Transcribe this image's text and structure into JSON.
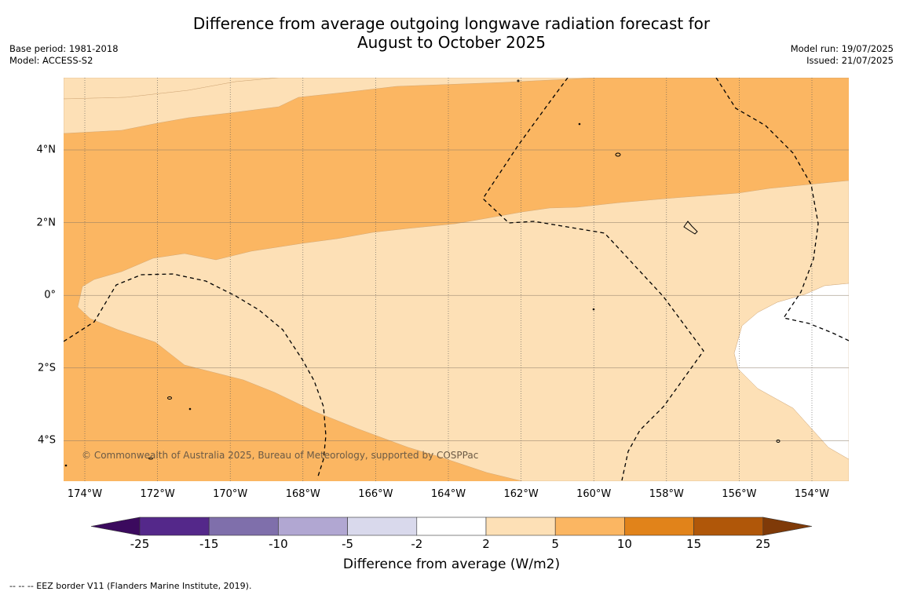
{
  "title_line1": "Difference from average outgoing longwave radiation forecast for",
  "title_line2": "August to October 2025",
  "base_period": "Base period: 1981-2018",
  "model": "Model: ACCESS-S2",
  "model_run": "Model run: 19/07/2025",
  "issued": "Issued: 21/07/2025",
  "copyright": "© Commonwealth of Australia 2025, Bureau of Meteorology, supported by COSPPac",
  "footer_legend": "--  --  -- EEZ border V11 (Flanders Marine Institute, 2019).",
  "lon_ticks": [
    "174°W",
    "172°W",
    "170°W",
    "168°W",
    "166°W",
    "164°W",
    "162°W",
    "160°W",
    "158°W",
    "156°W",
    "154°W"
  ],
  "lat_ticks": [
    "4°N",
    "2°N",
    "0°",
    "2°S",
    "4°S"
  ],
  "colorbar": {
    "label": "Difference from average (W/m2)",
    "ticks": [
      "-25",
      "-15",
      "-10",
      "-5",
      "-2",
      "2",
      "5",
      "10",
      "15",
      "25"
    ],
    "colors": [
      "#3b0a5e",
      "#54288a",
      "#7f6fab",
      "#b1a7d2",
      "#d9d9ec",
      "#ffffff",
      "#fde0b6",
      "#fbb662",
      "#e1831a",
      "#b05709",
      "#7f3a08"
    ]
  },
  "map_colors": {
    "light": "#fde0b6",
    "medium": "#fbb662",
    "none": "#ffffff"
  }
}
